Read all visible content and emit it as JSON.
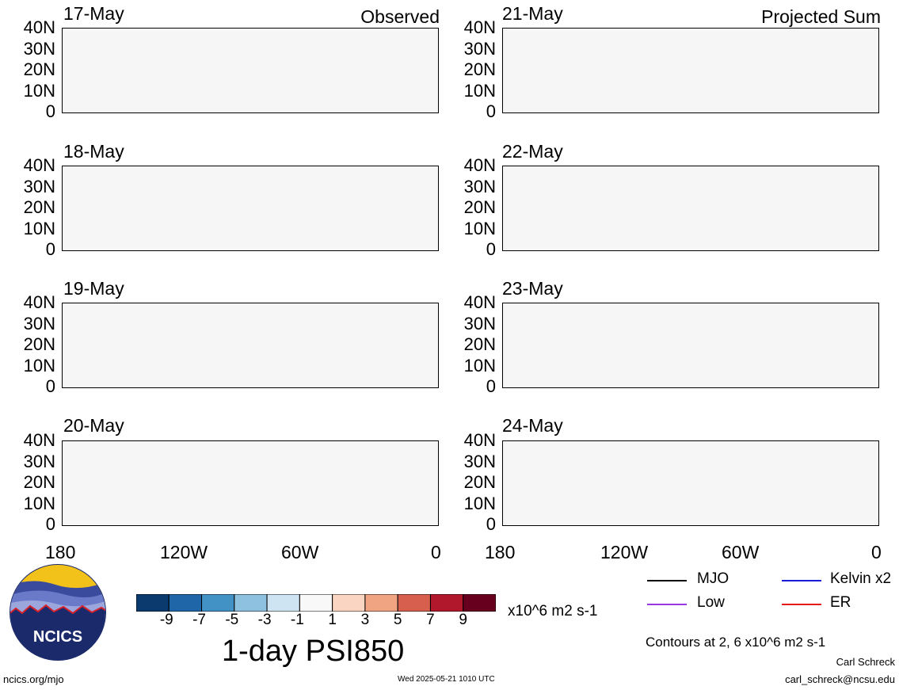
{
  "panels": {
    "left": {
      "header_label": "Observed",
      "dates": [
        "17-May",
        "18-May",
        "19-May",
        "20-May"
      ]
    },
    "right": {
      "header_label": "Projected Sum",
      "dates": [
        "21-May",
        "22-May",
        "23-May",
        "24-May"
      ]
    }
  },
  "lat_labels": [
    "40N",
    "30N",
    "20N",
    "10N",
    "0"
  ],
  "lon_labels": [
    "180",
    "120W",
    "60W",
    "0"
  ],
  "colorbar": {
    "tick_labels": [
      "-9",
      "-7",
      "-5",
      "-3",
      "-1",
      "1",
      "3",
      "5",
      "7",
      "9"
    ],
    "units": "x10^6 m2 s-1",
    "colors": [
      "#0b3a6e",
      "#1f66a8",
      "#4292c6",
      "#8ec1e0",
      "#cfe4f2",
      "#f8f8f8",
      "#fad6c2",
      "#f1a482",
      "#d6604d",
      "#b2182b",
      "#67001f"
    ]
  },
  "title": "1-day PSI850",
  "legend": {
    "items": [
      {
        "label": "MJO",
        "color": "#000000"
      },
      {
        "label": "Kelvin x2",
        "color": "#1a1ad6"
      },
      {
        "label": "Low",
        "color": "#9a36e6"
      },
      {
        "label": "ER",
        "color": "#e61a1a"
      }
    ],
    "contour_note": "Contours at 2, 6 x10^6 m2 s-1"
  },
  "logo": {
    "text": "NCICS"
  },
  "footer": {
    "url": "ncics.org/mjo",
    "timestamp": "Wed 2025-05-21 1010 UTC",
    "author": "Carl Schreck",
    "email": "carl_schreck@ncsu.edu"
  }
}
